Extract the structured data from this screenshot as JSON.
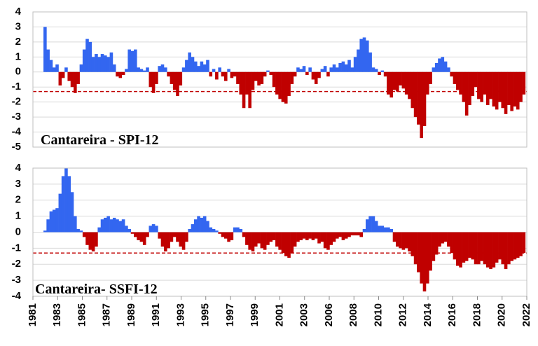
{
  "chart_data": [
    {
      "type": "bar",
      "title": "Cantareira - SPI-12",
      "x": [
        1982,
        1982.25,
        1982.5,
        1982.75,
        1983,
        1983.25,
        1983.5,
        1983.75,
        1984,
        1984.25,
        1984.5,
        1984.75,
        1985,
        1985.25,
        1985.5,
        1985.75,
        1986,
        1986.25,
        1986.5,
        1986.75,
        1987,
        1987.25,
        1987.5,
        1987.75,
        1988,
        1988.25,
        1988.5,
        1988.75,
        1989,
        1989.25,
        1989.5,
        1989.75,
        1990,
        1990.25,
        1990.5,
        1990.75,
        1991,
        1991.25,
        1991.5,
        1991.75,
        1992,
        1992.25,
        1992.5,
        1992.75,
        1993,
        1993.25,
        1993.5,
        1993.75,
        1994,
        1994.25,
        1994.5,
        1994.75,
        1995,
        1995.25,
        1995.5,
        1995.75,
        1996,
        1996.25,
        1996.5,
        1996.75,
        1997,
        1997.25,
        1997.5,
        1997.75,
        1998,
        1998.25,
        1998.5,
        1998.75,
        1999,
        1999.25,
        1999.5,
        1999.75,
        2000,
        2000.25,
        2000.5,
        2000.75,
        2001,
        2001.25,
        2001.5,
        2001.75,
        2002,
        2002.25,
        2002.5,
        2002.75,
        2003,
        2003.25,
        2003.5,
        2003.75,
        2004,
        2004.25,
        2004.5,
        2004.75,
        2005,
        2005.25,
        2005.5,
        2005.75,
        2006,
        2006.25,
        2006.5,
        2006.75,
        2007,
        2007.25,
        2007.5,
        2007.75,
        2008,
        2008.25,
        2008.5,
        2008.75,
        2009,
        2009.25,
        2009.5,
        2009.75,
        2010,
        2010.25,
        2010.5,
        2010.75,
        2011,
        2011.25,
        2011.5,
        2011.75,
        2012,
        2012.25,
        2012.5,
        2012.75,
        2013,
        2013.25,
        2013.5,
        2013.75,
        2014,
        2014.25,
        2014.5,
        2014.75,
        2015,
        2015.25,
        2015.5,
        2015.75,
        2016,
        2016.25,
        2016.5,
        2016.75,
        2017,
        2017.25,
        2017.5,
        2017.75,
        2018,
        2018.25,
        2018.5,
        2018.75,
        2019,
        2019.25,
        2019.5,
        2019.75,
        2020,
        2020.25,
        2020.5,
        2020.75,
        2021,
        2021.25,
        2021.5,
        2021.75
      ],
      "values": [
        3.0,
        1.5,
        0.8,
        0.3,
        0.5,
        -0.9,
        -0.4,
        0.3,
        -0.6,
        -1.0,
        -1.4,
        -0.8,
        0.5,
        1.5,
        2.2,
        2.0,
        1.0,
        1.2,
        1.0,
        1.2,
        1.1,
        1.0,
        1.3,
        0.5,
        -0.3,
        -0.4,
        -0.2,
        0.2,
        1.5,
        1.4,
        1.5,
        0.3,
        0.2,
        0.1,
        0.3,
        -1.0,
        -1.4,
        -0.8,
        0.4,
        0.5,
        0.3,
        -0.3,
        -0.8,
        -1.2,
        -1.6,
        -0.9,
        0.3,
        0.8,
        1.3,
        1.0,
        0.7,
        0.4,
        0.7,
        0.5,
        0.8,
        -0.3,
        0.2,
        -0.5,
        0.3,
        -0.3,
        -0.6,
        0.2,
        -0.4,
        -0.3,
        -0.8,
        -1.5,
        -2.4,
        -1.5,
        -2.4,
        -1.2,
        -0.6,
        -0.9,
        -0.8,
        -0.3,
        0.1,
        -0.2,
        -1.0,
        -1.5,
        -1.8,
        -2.0,
        -2.1,
        -1.6,
        -0.8,
        -0.3,
        0.3,
        0.2,
        0.4,
        -0.2,
        0.3,
        -0.5,
        -0.8,
        -0.4,
        0.2,
        0.4,
        -0.3,
        0.3,
        0.5,
        0.3,
        0.6,
        0.7,
        0.5,
        0.8,
        0.3,
        1.0,
        1.5,
        2.2,
        2.3,
        2.1,
        1.3,
        0.3,
        0.2,
        -0.2,
        0.1,
        -0.3,
        -1.5,
        -1.7,
        -1.2,
        -1.3,
        -0.9,
        -1.1,
        -1.5,
        -1.8,
        -2.4,
        -3.0,
        -3.5,
        -4.4,
        -3.6,
        -1.5,
        -0.8,
        0.3,
        0.6,
        0.9,
        1.0,
        0.7,
        0.3,
        -0.3,
        -0.8,
        -1.2,
        -1.5,
        -2.0,
        -2.9,
        -2.2,
        -1.6,
        -1.0,
        -1.8,
        -2.0,
        -1.5,
        -2.2,
        -1.8,
        -2.3,
        -2.5,
        -2.0,
        -2.4,
        -2.8,
        -2.2,
        -2.6,
        -2.3,
        -2.5,
        -2.0,
        -1.5
      ],
      "xlim": [
        1981,
        2022
      ],
      "ylim": [
        -5,
        4
      ],
      "yticks": [
        -5,
        -4,
        -3,
        -2,
        -1,
        0,
        1,
        2,
        3,
        4
      ],
      "positive_color": "#3366f0",
      "negative_color": "#c00000",
      "threshold": -1.3,
      "threshold_color": "#c00000",
      "grid": true
    },
    {
      "type": "bar",
      "title": "Cantareira- SSFI-12",
      "x": [
        1982,
        1982.25,
        1982.5,
        1982.75,
        1983,
        1983.25,
        1983.5,
        1983.75,
        1984,
        1984.25,
        1984.5,
        1984.75,
        1985,
        1985.25,
        1985.5,
        1985.75,
        1986,
        1986.25,
        1986.5,
        1986.75,
        1987,
        1987.25,
        1987.5,
        1987.75,
        1988,
        1988.25,
        1988.5,
        1988.75,
        1989,
        1989.25,
        1989.5,
        1989.75,
        1990,
        1990.25,
        1990.5,
        1990.75,
        1991,
        1991.25,
        1991.5,
        1991.75,
        1992,
        1992.25,
        1992.5,
        1992.75,
        1993,
        1993.25,
        1993.5,
        1993.75,
        1994,
        1994.25,
        1994.5,
        1994.75,
        1995,
        1995.25,
        1995.5,
        1995.75,
        1996,
        1996.25,
        1996.5,
        1996.75,
        1997,
        1997.25,
        1997.5,
        1997.75,
        1998,
        1998.25,
        1998.5,
        1998.75,
        1999,
        1999.25,
        1999.5,
        1999.75,
        2000,
        2000.25,
        2000.5,
        2000.75,
        2001,
        2001.25,
        2001.5,
        2001.75,
        2002,
        2002.25,
        2002.5,
        2002.75,
        2003,
        2003.25,
        2003.5,
        2003.75,
        2004,
        2004.25,
        2004.5,
        2004.75,
        2005,
        2005.25,
        2005.5,
        2005.75,
        2006,
        2006.25,
        2006.5,
        2006.75,
        2007,
        2007.25,
        2007.5,
        2007.75,
        2008,
        2008.25,
        2008.5,
        2008.75,
        2009,
        2009.25,
        2009.5,
        2009.75,
        2010,
        2010.25,
        2010.5,
        2010.75,
        2011,
        2011.25,
        2011.5,
        2011.75,
        2012,
        2012.25,
        2012.5,
        2012.75,
        2013,
        2013.25,
        2013.5,
        2013.75,
        2014,
        2014.25,
        2014.5,
        2014.75,
        2015,
        2015.25,
        2015.5,
        2015.75,
        2016,
        2016.25,
        2016.5,
        2016.75,
        2017,
        2017.25,
        2017.5,
        2017.75,
        2018,
        2018.25,
        2018.5,
        2018.75,
        2019,
        2019.25,
        2019.5,
        2019.75,
        2020,
        2020.25,
        2020.5,
        2020.75,
        2021,
        2021.25,
        2021.5,
        2021.75
      ],
      "values": [
        0.1,
        0.8,
        1.3,
        1.4,
        1.5,
        2.4,
        3.5,
        4.0,
        3.5,
        2.5,
        1.0,
        0.2,
        0.1,
        -0.3,
        -0.8,
        -1.1,
        -1.2,
        -0.9,
        0.3,
        0.8,
        0.9,
        1.0,
        0.8,
        0.9,
        0.8,
        0.7,
        0.8,
        0.4,
        0.2,
        -0.1,
        -0.3,
        -0.5,
        -0.6,
        -0.8,
        -0.3,
        0.4,
        0.5,
        0.4,
        -0.4,
        -0.9,
        -1.2,
        -1.0,
        -0.6,
        -0.3,
        -0.6,
        -0.9,
        -1.1,
        -0.6,
        0.2,
        0.5,
        0.8,
        1.0,
        0.9,
        1.0,
        0.7,
        0.3,
        0.2,
        0.1,
        -0.1,
        -0.3,
        -0.4,
        -0.6,
        -0.5,
        0.3,
        0.3,
        0.2,
        -0.3,
        -0.8,
        -1.1,
        -1.2,
        -0.9,
        -0.7,
        -1.0,
        -1.1,
        -0.8,
        -0.6,
        -0.5,
        -0.9,
        -1.1,
        -1.3,
        -1.5,
        -1.6,
        -1.3,
        -0.9,
        -0.6,
        -0.5,
        -0.4,
        -0.5,
        -0.4,
        -0.5,
        -0.4,
        -0.7,
        -0.6,
        -1.0,
        -1.1,
        -0.8,
        -0.6,
        -0.4,
        -0.3,
        -0.5,
        -0.4,
        -0.3,
        -0.2,
        -0.2,
        -0.2,
        -0.3,
        0.2,
        0.8,
        1.0,
        1.0,
        0.7,
        0.4,
        0.4,
        0.3,
        0.3,
        0.2,
        -0.6,
        -0.9,
        -1.0,
        -1.1,
        -1.0,
        -1.2,
        -1.5,
        -2.0,
        -2.5,
        -3.2,
        -3.7,
        -3.2,
        -2.4,
        -1.8,
        -1.4,
        -0.9,
        -0.7,
        -0.6,
        -0.9,
        -1.3,
        -1.7,
        -2.1,
        -2.2,
        -1.9,
        -1.8,
        -1.6,
        -1.7,
        -2.0,
        -2.0,
        -1.8,
        -2.0,
        -2.2,
        -2.3,
        -2.2,
        -1.9,
        -1.7,
        -2.0,
        -2.3,
        -2.0,
        -1.8,
        -1.7,
        -1.6,
        -1.5,
        -1.3
      ],
      "xlim": [
        1981,
        2022
      ],
      "ylim": [
        -4,
        4
      ],
      "yticks": [
        -4,
        -3,
        -2,
        -1,
        0,
        1,
        2,
        3,
        4
      ],
      "xticks": [
        {
          "value": 1981,
          "label": "1981"
        },
        {
          "value": 1983.05,
          "label": "1983"
        },
        {
          "value": 1985.1,
          "label": "1985"
        },
        {
          "value": 1987.15,
          "label": "1987"
        },
        {
          "value": 1989.2,
          "label": "1989"
        },
        {
          "value": 1991.25,
          "label": "1991"
        },
        {
          "value": 1993.3,
          "label": "1993"
        },
        {
          "value": 1995.35,
          "label": "1995"
        },
        {
          "value": 1997.4,
          "label": "1997"
        },
        {
          "value": 1999.45,
          "label": "1999"
        },
        {
          "value": 2001.5,
          "label": "2001"
        },
        {
          "value": 2003.55,
          "label": "2003"
        },
        {
          "value": 2005.6,
          "label": "2006"
        },
        {
          "value": 2007.65,
          "label": "2008"
        },
        {
          "value": 2009.7,
          "label": "2010"
        },
        {
          "value": 2011.75,
          "label": "2012"
        },
        {
          "value": 2013.8,
          "label": "2014"
        },
        {
          "value": 2015.85,
          "label": "2016"
        },
        {
          "value": 2017.9,
          "label": "2018"
        },
        {
          "value": 2019.95,
          "label": "2020"
        },
        {
          "value": 2022,
          "label": "2022"
        }
      ],
      "positive_color": "#3366f0",
      "negative_color": "#c00000",
      "threshold": -1.3,
      "threshold_color": "#c00000",
      "grid": true
    }
  ]
}
